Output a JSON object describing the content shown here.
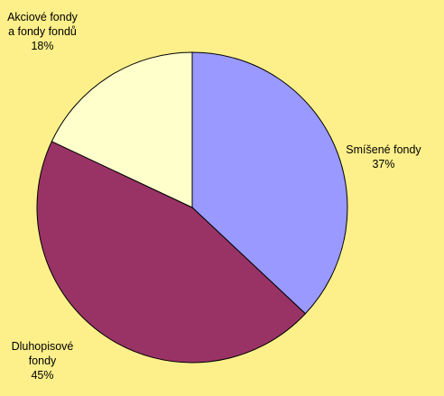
{
  "chart_data": {
    "type": "pie",
    "slices": [
      {
        "name_lines": [
          "Smíšené fondy"
        ],
        "value": 37,
        "value_label": "37%",
        "color": "#9999FF"
      },
      {
        "name_lines": [
          "Dluhopisové",
          "fondy"
        ],
        "value": 45,
        "value_label": "45%",
        "color": "#993366"
      },
      {
        "name_lines": [
          "Akciové fondy",
          "a fondy fondů"
        ],
        "value": 18,
        "value_label": "18%",
        "color": "#FFFFCC"
      }
    ],
    "start": "12 o'clock",
    "direction": "clockwise",
    "background": "#FDF08A"
  }
}
